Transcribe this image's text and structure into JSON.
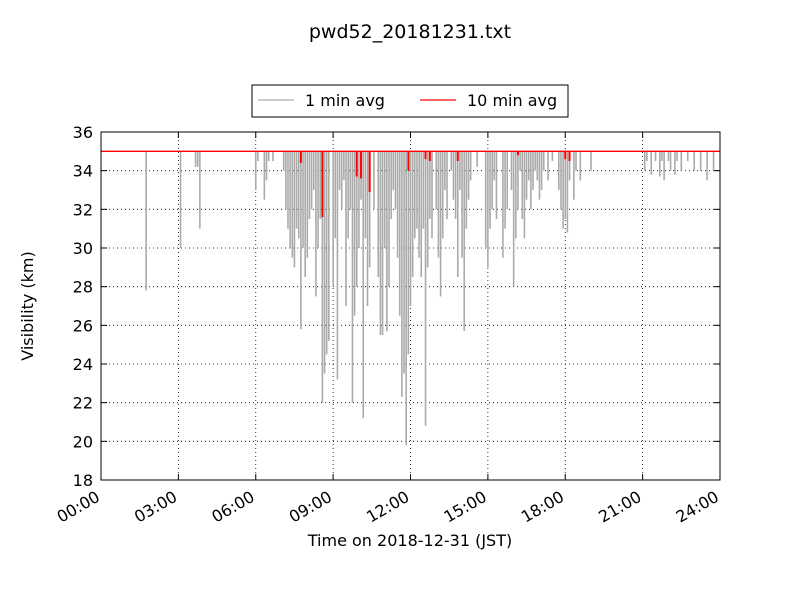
{
  "chart_data": {
    "type": "line",
    "title": "pwd52_20181231.txt",
    "xlabel": "Time on 2018-12-31 (JST)",
    "ylabel": "Visibility (km)",
    "xlim": [
      "00:00",
      "24:00"
    ],
    "ylim": [
      18,
      36
    ],
    "xticks": [
      "00:00",
      "03:00",
      "06:00",
      "09:00",
      "12:00",
      "15:00",
      "18:00",
      "21:00",
      "24:00"
    ],
    "yticks": [
      18,
      20,
      22,
      24,
      26,
      28,
      30,
      32,
      34,
      36
    ],
    "grid": true,
    "legend": "top-center",
    "baseline": 35,
    "series": [
      {
        "name": "1 min avg",
        "color": "#aaaaaa",
        "dips": [
          [
            "01:45",
            27.8
          ],
          [
            "03:45",
            34.2
          ],
          [
            "03:05",
            30.0
          ],
          [
            "03:40",
            34.2
          ],
          [
            "03:50",
            31.0
          ],
          [
            "06:00",
            33.0
          ],
          [
            "06:05",
            34.5
          ],
          [
            "06:20",
            32.5
          ],
          [
            "06:25",
            33.5
          ],
          [
            "06:30",
            34.5
          ],
          [
            "06:40",
            34.5
          ],
          [
            "07:05",
            34.0
          ],
          [
            "07:10",
            32.0
          ],
          [
            "07:15",
            31.0
          ],
          [
            "07:20",
            30.0
          ],
          [
            "07:25",
            29.5
          ],
          [
            "07:30",
            29.0
          ],
          [
            "07:35",
            31.0
          ],
          [
            "07:40",
            30.5
          ],
          [
            "07:45",
            25.8
          ],
          [
            "07:50",
            30.0
          ],
          [
            "07:55",
            28.5
          ],
          [
            "08:00",
            29.5
          ],
          [
            "08:05",
            31.5
          ],
          [
            "08:10",
            32.0
          ],
          [
            "08:15",
            33.0
          ],
          [
            "08:20",
            27.5
          ],
          [
            "08:25",
            30.0
          ],
          [
            "08:30",
            31.5
          ],
          [
            "08:35",
            22.0
          ],
          [
            "08:40",
            23.5
          ],
          [
            "08:45",
            24.5
          ],
          [
            "08:50",
            25.2
          ],
          [
            "09:00",
            28.0
          ],
          [
            "09:05",
            30.5
          ],
          [
            "09:10",
            23.2
          ],
          [
            "09:15",
            33.0
          ],
          [
            "09:20",
            32.0
          ],
          [
            "09:25",
            33.5
          ],
          [
            "09:30",
            27.0
          ],
          [
            "09:35",
            30.5
          ],
          [
            "09:40",
            32.0
          ],
          [
            "09:45",
            22.0
          ],
          [
            "09:50",
            26.5
          ],
          [
            "09:55",
            28.0
          ],
          [
            "10:00",
            30.0
          ],
          [
            "10:05",
            32.5
          ],
          [
            "10:10",
            21.2
          ],
          [
            "10:15",
            30.5
          ],
          [
            "10:20",
            27.0
          ],
          [
            "10:25",
            29.0
          ],
          [
            "10:35",
            32.0
          ],
          [
            "10:45",
            28.5
          ],
          [
            "10:50",
            25.5
          ],
          [
            "10:55",
            25.5
          ],
          [
            "11:00",
            30.0
          ],
          [
            "11:05",
            25.7
          ],
          [
            "11:10",
            28.0
          ],
          [
            "11:15",
            31.5
          ],
          [
            "11:20",
            33.0
          ],
          [
            "11:25",
            32.0
          ],
          [
            "11:30",
            29.5
          ],
          [
            "11:35",
            26.5
          ],
          [
            "11:40",
            22.3
          ],
          [
            "11:45",
            23.5
          ],
          [
            "11:50",
            19.8
          ],
          [
            "11:55",
            24.5
          ],
          [
            "12:00",
            27.0
          ],
          [
            "12:05",
            28.5
          ],
          [
            "12:10",
            30.5
          ],
          [
            "12:15",
            31.0
          ],
          [
            "12:20",
            29.5
          ],
          [
            "12:25",
            28.5
          ],
          [
            "12:30",
            31.0
          ],
          [
            "12:35",
            20.8
          ],
          [
            "12:40",
            29.0
          ],
          [
            "12:45",
            31.5
          ],
          [
            "12:50",
            30.5
          ],
          [
            "13:00",
            32.0
          ],
          [
            "13:05",
            29.5
          ],
          [
            "13:10",
            27.5
          ],
          [
            "13:15",
            30.5
          ],
          [
            "13:20",
            33.0
          ],
          [
            "13:25",
            31.5
          ],
          [
            "13:35",
            34.0
          ],
          [
            "13:40",
            32.5
          ],
          [
            "13:45",
            31.5
          ],
          [
            "13:50",
            28.5
          ],
          [
            "13:55",
            33.0
          ],
          [
            "14:00",
            29.5
          ],
          [
            "14:05",
            25.7
          ],
          [
            "14:10",
            31.0
          ],
          [
            "14:15",
            32.5
          ],
          [
            "14:20",
            33.5
          ],
          [
            "14:35",
            34.2
          ],
          [
            "14:55",
            30.0
          ],
          [
            "15:00",
            29.0
          ],
          [
            "15:05",
            31.0
          ],
          [
            "15:10",
            32.0
          ],
          [
            "15:15",
            33.5
          ],
          [
            "15:20",
            31.5
          ],
          [
            "15:35",
            29.5
          ],
          [
            "15:40",
            31.0
          ],
          [
            "15:45",
            32.0
          ],
          [
            "15:55",
            33.0
          ],
          [
            "16:00",
            28.0
          ],
          [
            "16:05",
            30.5
          ],
          [
            "16:10",
            32.0
          ],
          [
            "16:15",
            34.0
          ],
          [
            "16:20",
            31.5
          ],
          [
            "16:25",
            30.5
          ],
          [
            "16:30",
            32.5
          ],
          [
            "16:35",
            33.5
          ],
          [
            "16:40",
            32.0
          ],
          [
            "16:45",
            33.0
          ],
          [
            "16:50",
            34.0
          ],
          [
            "16:55",
            33.5
          ],
          [
            "17:00",
            32.5
          ],
          [
            "17:05",
            33.0
          ],
          [
            "17:10",
            34.0
          ],
          [
            "17:20",
            33.5
          ],
          [
            "17:30",
            34.5
          ],
          [
            "17:45",
            33.0
          ],
          [
            "17:50",
            32.0
          ],
          [
            "17:55",
            31.0
          ],
          [
            "18:00",
            31.5
          ],
          [
            "18:05",
            30.8
          ],
          [
            "18:10",
            33.5
          ],
          [
            "18:20",
            32.5
          ],
          [
            "18:25",
            34.0
          ],
          [
            "18:35",
            33.5
          ],
          [
            "19:00",
            34.0
          ],
          [
            "21:05",
            34.0
          ],
          [
            "21:10",
            34.5
          ],
          [
            "21:20",
            33.8
          ],
          [
            "21:30",
            34.5
          ],
          [
            "21:40",
            33.7
          ],
          [
            "21:45",
            34.5
          ],
          [
            "21:50",
            33.5
          ],
          [
            "22:00",
            34.5
          ],
          [
            "22:05",
            34.0
          ],
          [
            "22:15",
            33.8
          ],
          [
            "22:20",
            34.5
          ],
          [
            "22:30",
            34.0
          ],
          [
            "22:45",
            34.5
          ],
          [
            "23:00",
            34.0
          ],
          [
            "23:15",
            34.0
          ],
          [
            "23:30",
            33.5
          ],
          [
            "23:45",
            34.0
          ]
        ]
      },
      {
        "name": "10 min avg",
        "color": "#ff0000",
        "dips": [
          [
            "07:45",
            34.4
          ],
          [
            "08:35",
            31.6
          ],
          [
            "09:55",
            33.7
          ],
          [
            "10:05",
            33.6
          ],
          [
            "10:25",
            32.9
          ],
          [
            "11:55",
            34.0
          ],
          [
            "12:35",
            34.6
          ],
          [
            "12:45",
            34.5
          ],
          [
            "13:50",
            34.5
          ],
          [
            "16:10",
            34.8
          ],
          [
            "18:00",
            34.6
          ],
          [
            "18:10",
            34.5
          ]
        ]
      }
    ]
  }
}
